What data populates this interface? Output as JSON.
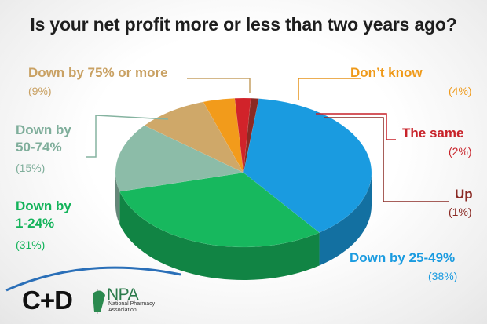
{
  "chart_data": {
    "type": "pie",
    "title": "Is your net profit more or less than two years ago?",
    "slices": [
      {
        "label": "Down by 25-49%",
        "pct_label": "(38%)",
        "value": 38,
        "color": "#1a9be0"
      },
      {
        "label": "Down by 1-24%",
        "pct_label": "(31%)",
        "value": 31,
        "color": "#17b85e"
      },
      {
        "label": "Down by 50-74%",
        "pct_label": "(15%)",
        "value": 15,
        "color": "#8cbca8"
      },
      {
        "label": "Down by 75% or more",
        "pct_label": "(9%)",
        "value": 9,
        "color": "#cfa869"
      },
      {
        "label": "Don’t know",
        "pct_label": "(4%)",
        "value": 4,
        "color": "#f29b1b"
      },
      {
        "label": "The same",
        "pct_label": "(2%)",
        "value": 2,
        "color": "#d1232a"
      },
      {
        "label": "Up",
        "pct_label": "(1%)",
        "value": 1,
        "color": "#8a2a24"
      }
    ],
    "label_text": {
      "s25": [
        "Down by 25-49%"
      ],
      "s1": [
        "Down by",
        "1-24%"
      ],
      "s50": [
        "Down by",
        "50-74%"
      ],
      "s75": [
        "Down by 75% or more"
      ],
      "dk": [
        "Don’t know"
      ],
      "same": [
        "The same"
      ],
      "up": [
        "Up"
      ]
    }
  },
  "logos": {
    "cd": "C+D",
    "npa": "NPA",
    "npa_subtitle": "National Pharmacy Association"
  }
}
